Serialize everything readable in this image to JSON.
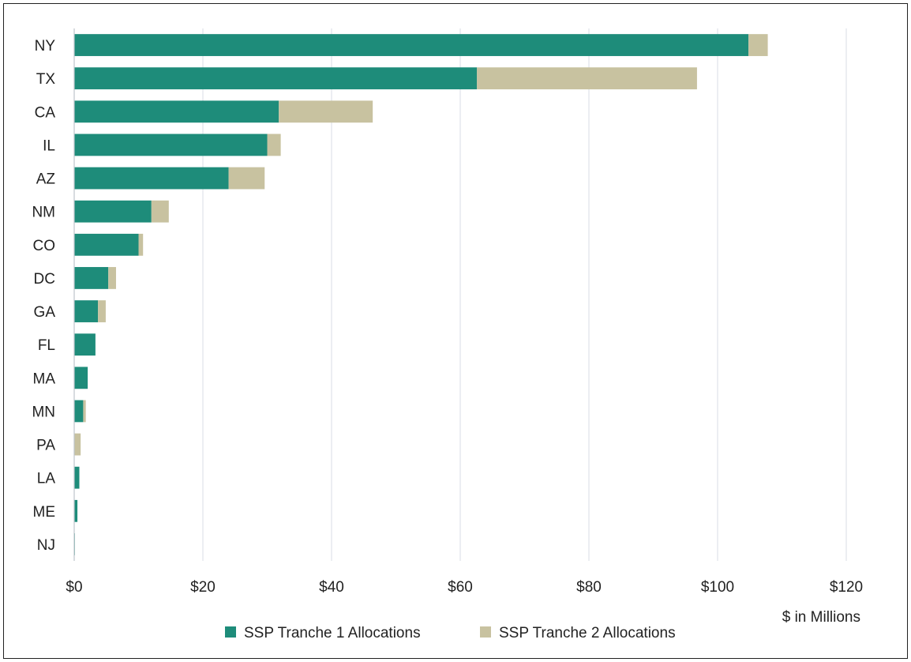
{
  "chart_data": {
    "type": "bar",
    "orientation": "horizontal",
    "stacked": true,
    "categories": [
      "NY",
      "TX",
      "CA",
      "IL",
      "AZ",
      "NM",
      "CO",
      "DC",
      "GA",
      "FL",
      "MA",
      "MN",
      "PA",
      "LA",
      "ME",
      "NJ"
    ],
    "series": [
      {
        "name": "SSP Tranche 1 Allocations",
        "color": "#1e8c7a",
        "values": [
          104.8,
          62.6,
          31.8,
          30.0,
          24.0,
          12.0,
          10.0,
          5.3,
          3.7,
          3.3,
          2.1,
          1.4,
          0.0,
          0.8,
          0.5,
          0.1
        ]
      },
      {
        "name": "SSP Tranche 2 Allocations",
        "color": "#c8c2a0",
        "values": [
          3.0,
          34.2,
          14.6,
          2.1,
          5.6,
          2.7,
          0.7,
          1.2,
          1.2,
          0.0,
          0.0,
          0.4,
          1.0,
          0.0,
          0.0,
          0.0
        ]
      }
    ],
    "xlim": [
      0,
      120
    ],
    "xticks": [
      0,
      20,
      40,
      60,
      80,
      100,
      120
    ],
    "xtick_labels": [
      "$0",
      "$20",
      "$40",
      "$60",
      "$80",
      "$100",
      "$120"
    ],
    "xlabel": "$ in Millions",
    "grid": "vertical",
    "legend_position": "bottom"
  }
}
